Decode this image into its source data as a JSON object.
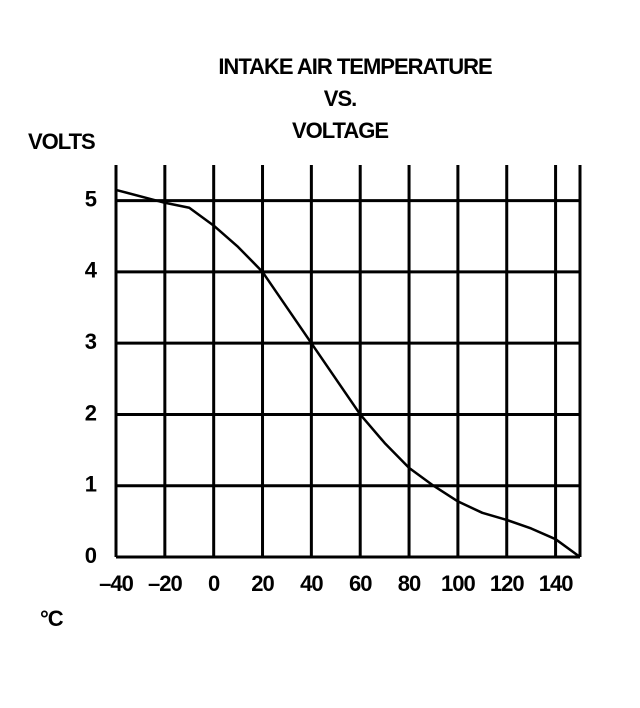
{
  "chart_data": {
    "type": "line",
    "title": [
      "INTAKE AIR TEMPERATURE",
      "VS.",
      "VOLTAGE"
    ],
    "y_label": "VOLTS",
    "x_label": "°C",
    "x": [
      -40,
      -20,
      -10,
      0,
      10,
      20,
      30,
      40,
      50,
      60,
      70,
      80,
      90,
      100,
      110,
      120,
      130,
      140,
      150
    ],
    "series": [
      {
        "color": "#000000",
        "values": [
          5.15,
          4.97,
          4.9,
          4.65,
          4.35,
          4.0,
          3.5,
          3.0,
          2.5,
          2.0,
          1.6,
          1.25,
          1.0,
          0.78,
          0.62,
          0.52,
          0.4,
          0.25,
          0.0
        ]
      }
    ],
    "xlim": [
      -40,
      150
    ],
    "ylim": [
      0,
      5.5
    ],
    "xticks": [
      {
        "value": -40,
        "label": "–40"
      },
      {
        "value": -20,
        "label": "–20"
      },
      0,
      20,
      40,
      60,
      80,
      100,
      120,
      140
    ],
    "yticks": [
      0,
      1,
      2,
      3,
      4,
      5
    ],
    "grid": true
  }
}
